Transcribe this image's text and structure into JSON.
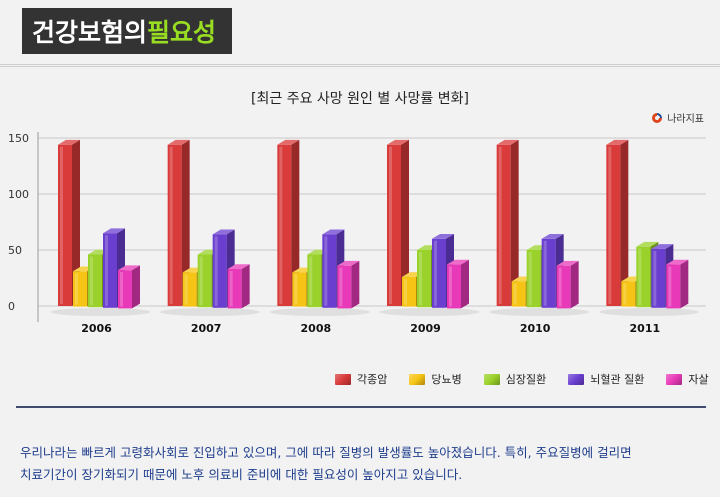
{
  "header": {
    "title_white": "건강보험의",
    "title_green": "필요성"
  },
  "source_label": "나라지표",
  "chart_data": {
    "type": "bar",
    "title": "[최근 주요 사망 원인 별 사망률 변화]",
    "categories": [
      "2006",
      "2007",
      "2008",
      "2009",
      "2010",
      "2011"
    ],
    "series": [
      {
        "name": "각종암",
        "color": "#d93a3a",
        "values": [
          144,
          144,
          144,
          144,
          144,
          144
        ]
      },
      {
        "name": "당뇨병",
        "color": "#f5c414",
        "values": [
          31,
          30,
          30,
          26,
          22,
          22
        ]
      },
      {
        "name": "심장질환",
        "color": "#9ad12a",
        "values": [
          46,
          46,
          46,
          50,
          50,
          53
        ]
      },
      {
        "name": "뇌혈관 질환",
        "color": "#6a3fd0",
        "values": [
          65,
          64,
          64,
          60,
          60,
          51
        ]
      },
      {
        "name": "자살",
        "color": "#e83ab8",
        "values": [
          32,
          33,
          36,
          37,
          36,
          37
        ]
      }
    ],
    "yticks": [
      0,
      50,
      100,
      150
    ],
    "ylim": [
      0,
      150
    ],
    "grid": true,
    "legend_position": "bottom-right"
  },
  "note": {
    "line1": "우리나라는 빠르게 고령화사회로 진입하고 있으며, 그에 따라 질병의 발생률도 높아졌습니다.  특히, 주요질병에  걸리면",
    "line2": "치료기간이 장기화되기 때문에 노후 의료비 준비에 대한 필요성이 높아지고 있습니다."
  }
}
